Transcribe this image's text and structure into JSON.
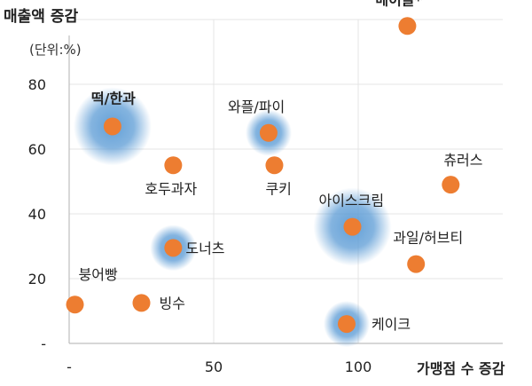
{
  "chart_data": {
    "type": "scatter",
    "ylabel": "매출액 증감",
    "unit_note": "(단위:%)",
    "xlabel": "가맹점 수 증감",
    "xlim": [
      0,
      150
    ],
    "ylim": [
      0,
      100
    ],
    "x_ticks": [
      {
        "value": 0,
        "label": "-"
      },
      {
        "value": 50,
        "label": "50"
      },
      {
        "value": 100,
        "label": "100"
      }
    ],
    "y_ticks": [
      {
        "value": 0,
        "label": "-"
      },
      {
        "value": 20,
        "label": "20"
      },
      {
        "value": 40,
        "label": "40"
      },
      {
        "value": 60,
        "label": "60"
      },
      {
        "value": 80,
        "label": "80"
      }
    ],
    "grid": true,
    "point_color": "#ED7D31",
    "highlight_color": "#5B9BD5",
    "points": [
      {
        "label": "베이글*",
        "x": 117,
        "y": 98,
        "bold": true,
        "highlight": false
      },
      {
        "label": "떡/한과",
        "x": 15,
        "y": 67,
        "bold": true,
        "highlight": true
      },
      {
        "label": "와플/파이",
        "x": 69,
        "y": 65,
        "bold": false,
        "highlight": true
      },
      {
        "label": "호두과자",
        "x": 36,
        "y": 55,
        "bold": false,
        "highlight": false
      },
      {
        "label": "쿠키",
        "x": 71,
        "y": 55,
        "bold": false,
        "highlight": false
      },
      {
        "label": "츄러스",
        "x": 132,
        "y": 49,
        "bold": false,
        "highlight": false
      },
      {
        "label": "아이스크림",
        "x": 98,
        "y": 36,
        "bold": false,
        "highlight": true
      },
      {
        "label": "도너츠",
        "x": 36,
        "y": 29.5,
        "bold": false,
        "highlight": true
      },
      {
        "label": "과일/허브티",
        "x": 120,
        "y": 24.5,
        "bold": false,
        "highlight": false
      },
      {
        "label": "붕어빵",
        "x": 2,
        "y": 12,
        "bold": false,
        "highlight": false
      },
      {
        "label": "빙수",
        "x": 25,
        "y": 12.5,
        "bold": false,
        "highlight": false
      },
      {
        "label": "케이크",
        "x": 96,
        "y": 6,
        "bold": false,
        "highlight": true
      }
    ]
  }
}
